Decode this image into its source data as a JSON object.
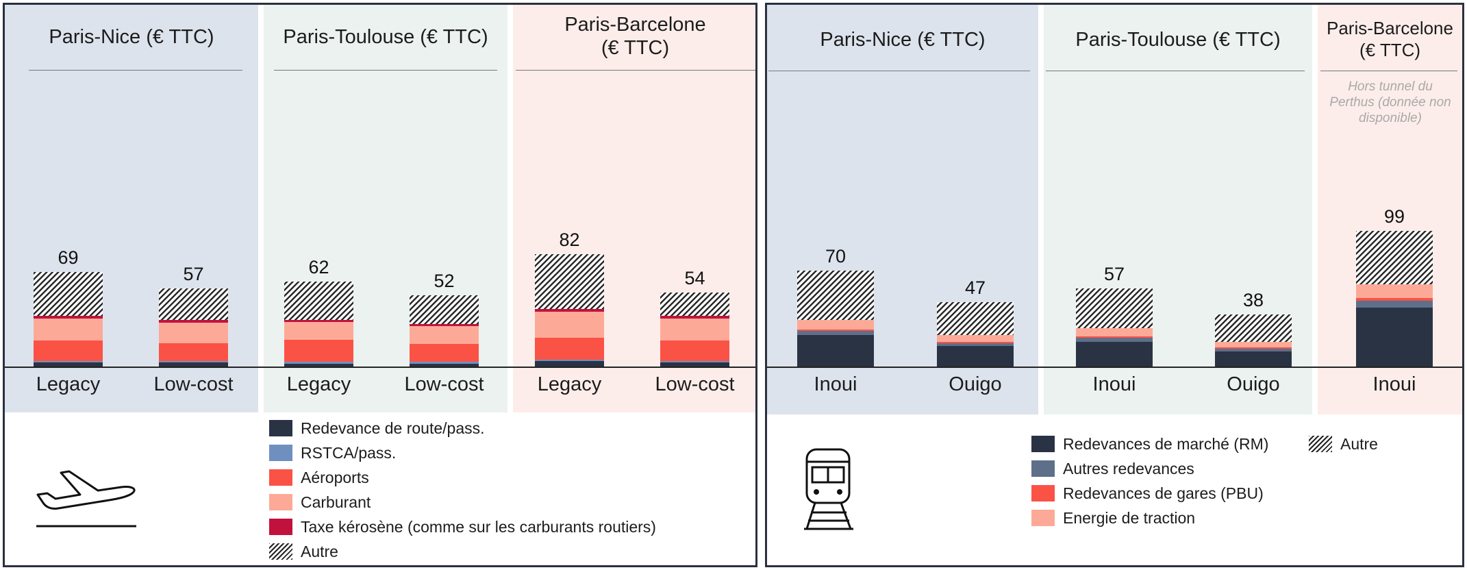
{
  "air": {
    "groups": [
      {
        "title": "Paris-Nice (€ TTC)",
        "band": "blue"
      },
      {
        "title": "Paris-Toulouse (€ TTC)",
        "band": "green"
      },
      {
        "title": "Paris-Barcelone\n(€ TTC)",
        "band": "pink"
      }
    ],
    "legend": [
      {
        "label": "Redevance de route/pass.",
        "color": "#2a3344"
      },
      {
        "label": "RSTCA/pass.",
        "color": "#6f8fbf"
      },
      {
        "label": "Aéroports",
        "color": "#fb5246"
      },
      {
        "label": "Carburant",
        "color": "#fcaa97"
      },
      {
        "label": "Taxe kérosène (comme sur les carburants routiers)",
        "color": "#c1123e"
      },
      {
        "label": "Autre",
        "color": "hatch"
      }
    ],
    "icon": "airplane-takeoff-icon"
  },
  "rail": {
    "groups": [
      {
        "title": "Paris-Nice (€ TTC)",
        "band": "blue"
      },
      {
        "title": "Paris-Toulouse (€ TTC)",
        "band": "green"
      },
      {
        "title": "Paris-Barcelone\n(€ TTC)",
        "band": "pink",
        "note": "Hors tunnel du Perthus (donnée non disponible)"
      }
    ],
    "legend": [
      {
        "label": "Redevances de marché (RM)",
        "color": "#2a3344"
      },
      {
        "label": "Autres redevances",
        "color": "#5e6f8a"
      },
      {
        "label": "Redevances de gares (PBU)",
        "color": "#fb5246"
      },
      {
        "label": "Energie de traction",
        "color": "#fcaa97"
      },
      {
        "label": "Autre",
        "color": "hatch"
      }
    ],
    "icon": "train-icon"
  },
  "chart_data": [
    {
      "type": "bar",
      "stacked": true,
      "title": "",
      "unit": "€ TTC",
      "categories": [
        "Legacy",
        "Low-cost",
        "Legacy",
        "Low-cost",
        "Legacy",
        "Low-cost"
      ],
      "groups": [
        "Paris-Nice (€ TTC)",
        "Paris-Nice (€ TTC)",
        "Paris-Toulouse (€ TTC)",
        "Paris-Toulouse (€ TTC)",
        "Paris-Barcelone (€ TTC)",
        "Paris-Barcelone (€ TTC)"
      ],
      "totals": [
        69,
        57,
        62,
        52,
        82,
        54
      ],
      "series": [
        {
          "name": "Redevance de route/pass.",
          "color": "#2a3344",
          "values": [
            3,
            3,
            2,
            2,
            4,
            3
          ]
        },
        {
          "name": "RSTCA/pass.",
          "color": "#6f8fbf",
          "values": [
            1,
            1,
            1.5,
            1.5,
            1,
            1
          ]
        },
        {
          "name": "Aéroports",
          "color": "#fb5246",
          "values": [
            15,
            13,
            16,
            13,
            16,
            15
          ]
        },
        {
          "name": "Carburant",
          "color": "#fcaa97",
          "values": [
            16,
            15,
            13,
            13,
            19,
            16
          ]
        },
        {
          "name": "Taxe kérosène (comme sur les carburants routiers)",
          "color": "#c1123e",
          "values": [
            2,
            2,
            1.5,
            1.5,
            2,
            2
          ]
        },
        {
          "name": "Autre",
          "color": "hatch",
          "values": [
            32,
            23,
            28,
            21,
            40,
            17
          ]
        }
      ]
    },
    {
      "type": "bar",
      "stacked": true,
      "title": "",
      "unit": "€ TTC",
      "categories": [
        "Inoui",
        "Ouigo",
        "Inoui",
        "Ouigo",
        "Inoui"
      ],
      "groups": [
        "Paris-Nice (€ TTC)",
        "Paris-Nice (€ TTC)",
        "Paris-Toulouse (€ TTC)",
        "Paris-Toulouse (€ TTC)",
        "Paris-Barcelone (€ TTC)"
      ],
      "totals": [
        70,
        47,
        57,
        38,
        99
      ],
      "series": [
        {
          "name": "Redevances de marché (RM)",
          "color": "#2a3344",
          "values": [
            23,
            15,
            18,
            11,
            43
          ]
        },
        {
          "name": "Autres redevances",
          "color": "#5e6f8a",
          "values": [
            3,
            2,
            3,
            2,
            5
          ]
        },
        {
          "name": "Redevances de gares (PBU)",
          "color": "#fb5246",
          "values": [
            1,
            1,
            1,
            1,
            2
          ]
        },
        {
          "name": "Energie de traction",
          "color": "#fcaa97",
          "values": [
            7,
            5,
            6,
            4,
            10
          ]
        },
        {
          "name": "Autre",
          "color": "hatch",
          "values": [
            36,
            24,
            29,
            20,
            39
          ]
        }
      ]
    }
  ]
}
